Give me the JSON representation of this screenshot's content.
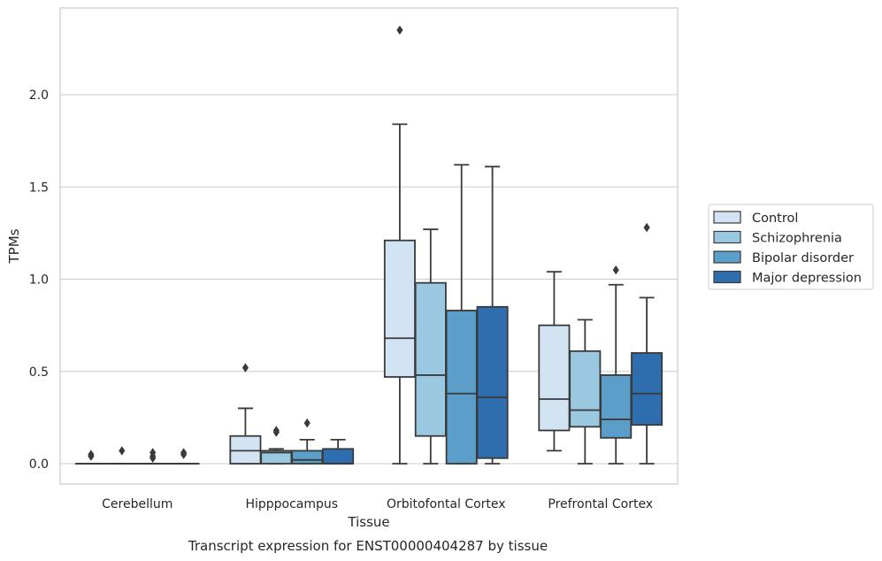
{
  "chart_data": {
    "type": "box",
    "title": "Transcript expression for ENST00000404287 by tissue",
    "xlabel": "Tissue",
    "ylabel": "TPMs",
    "ylim": [
      -0.11,
      2.47
    ],
    "yticks": [
      0.0,
      0.5,
      1.0,
      1.5,
      2.0
    ],
    "ytick_labels": [
      "0.0",
      "0.5",
      "1.0",
      "1.5",
      "2.0"
    ],
    "grid": "horizontal",
    "legend_position": "right",
    "categories": [
      "Cerebellum",
      "Hipppocampus",
      "Orbitofontal Cortex",
      "Prefrontal Cortex"
    ],
    "series": [
      {
        "name": "Control",
        "color": "#d2e3f3",
        "boxes": [
          {
            "whislo": 0,
            "q1": 0,
            "med": 0,
            "q3": 0,
            "whishi": 0,
            "fliers": [
              0.04,
              0.05
            ]
          },
          {
            "whislo": 0,
            "q1": 0,
            "med": 0.07,
            "q3": 0.15,
            "whishi": 0.3,
            "fliers": [
              0.52
            ]
          },
          {
            "whislo": 0,
            "q1": 0.47,
            "med": 0.68,
            "q3": 1.21,
            "whishi": 1.84,
            "fliers": [
              2.35
            ]
          },
          {
            "whislo": 0.07,
            "q1": 0.18,
            "med": 0.35,
            "q3": 0.75,
            "whishi": 1.04,
            "fliers": []
          }
        ]
      },
      {
        "name": "Schizophrenia",
        "color": "#9ac8e0",
        "boxes": [
          {
            "whislo": 0,
            "q1": 0,
            "med": 0,
            "q3": 0,
            "whishi": 0,
            "fliers": [
              0.07
            ]
          },
          {
            "whislo": 0,
            "q1": 0,
            "med": 0.06,
            "q3": 0.07,
            "whishi": 0.08,
            "fliers": [
              0.17,
              0.18
            ]
          },
          {
            "whislo": 0,
            "q1": 0.15,
            "med": 0.48,
            "q3": 0.98,
            "whishi": 1.27,
            "fliers": []
          },
          {
            "whislo": 0,
            "q1": 0.2,
            "med": 0.29,
            "q3": 0.61,
            "whishi": 0.78,
            "fliers": []
          }
        ]
      },
      {
        "name": "Bipolar disorder",
        "color": "#5a9ec9",
        "boxes": [
          {
            "whislo": 0,
            "q1": 0,
            "med": 0,
            "q3": 0,
            "whishi": 0,
            "fliers": [
              0.03,
              0.04,
              0.06
            ]
          },
          {
            "whislo": 0,
            "q1": 0,
            "med": 0.02,
            "q3": 0.07,
            "whishi": 0.13,
            "fliers": [
              0.22
            ]
          },
          {
            "whislo": 0,
            "q1": 0,
            "med": 0.38,
            "q3": 0.83,
            "whishi": 1.62,
            "fliers": []
          },
          {
            "whislo": 0,
            "q1": 0.14,
            "med": 0.24,
            "q3": 0.48,
            "whishi": 0.97,
            "fliers": [
              1.05
            ]
          }
        ]
      },
      {
        "name": "Major depression",
        "color": "#2e6eaf",
        "boxes": [
          {
            "whislo": 0,
            "q1": 0,
            "med": 0,
            "q3": 0,
            "whishi": 0,
            "fliers": [
              0.05,
              0.06
            ]
          },
          {
            "whislo": 0,
            "q1": 0,
            "med": 0,
            "q3": 0.08,
            "whishi": 0.13,
            "fliers": []
          },
          {
            "whislo": 0,
            "q1": 0.03,
            "med": 0.36,
            "q3": 0.85,
            "whishi": 1.61,
            "fliers": []
          },
          {
            "whislo": 0,
            "q1": 0.21,
            "med": 0.38,
            "q3": 0.6,
            "whishi": 0.9,
            "fliers": [
              1.28
            ]
          }
        ]
      }
    ]
  }
}
